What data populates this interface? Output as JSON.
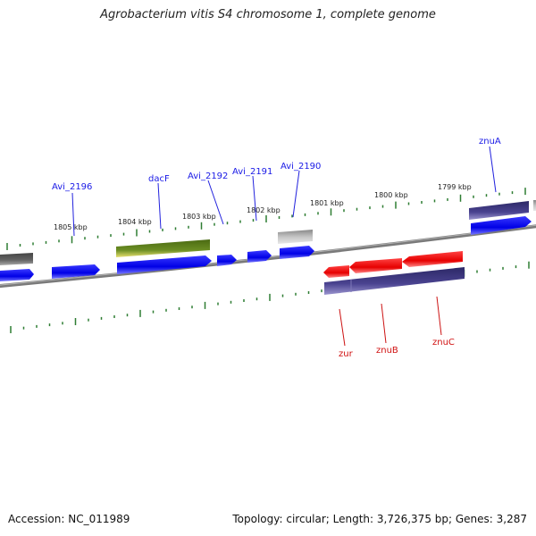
{
  "title": "Agrobacterium vitis S4 chromosome 1, complete genome",
  "footer": {
    "accession": "Accession: NC_011989",
    "topology": "Topology: circular; Length: 3,726,375 bp; Genes: 3,287"
  },
  "scale_labels": [
    "1805 kbp",
    "1804 kbp",
    "1803 kbp",
    "1802 kbp",
    "1801 kbp",
    "1800 kbp",
    "1799 kbp"
  ],
  "gene_labels": {
    "avi_2196": "Avi_2196",
    "dacf": "dacF",
    "avi_2192": "Avi_2192",
    "avi_2191": "Avi_2191",
    "avi_2190": "Avi_2190",
    "znua": "znuA",
    "zur": "zur",
    "znub": "znuB",
    "znuc": "znuC"
  },
  "colors": {
    "forward_cds": "#0000ee",
    "reverse_cds": "#ee0000",
    "gene_purple": "#4a4390",
    "gene_olive": "#6b8e23",
    "gene_gray": "#aaaaaa",
    "backbone": "#808080",
    "tick": "#2e7d32"
  }
}
